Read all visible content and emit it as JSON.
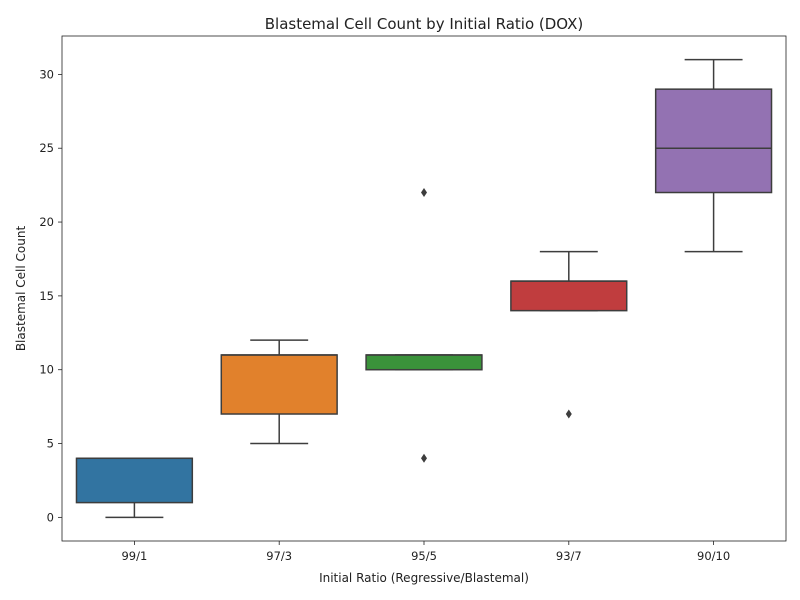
{
  "chart_data": {
    "type": "box",
    "title": "Blastemal Cell Count by Initial Ratio (DOX)",
    "xlabel": "Initial Ratio (Regressive/Blastemal)",
    "ylabel": "Blastemal Cell Count",
    "ylim": [
      -1.6,
      32.6
    ],
    "yticks": [
      0,
      5,
      10,
      15,
      20,
      25,
      30
    ],
    "grid": false,
    "categories": [
      "99/1",
      "97/3",
      "95/5",
      "93/7",
      "90/10"
    ],
    "boxes": [
      {
        "category": "99/1",
        "whisker_low": 0,
        "q1": 1,
        "median": 4,
        "q3": 4,
        "whisker_high": 4,
        "outliers": [],
        "color": "#3274a1"
      },
      {
        "category": "97/3",
        "whisker_low": 5,
        "q1": 7,
        "median": 11,
        "q3": 11,
        "whisker_high": 12,
        "outliers": [],
        "color": "#e1812c"
      },
      {
        "category": "95/5",
        "whisker_low": 10,
        "q1": 10,
        "median": 11,
        "q3": 11,
        "whisker_high": 11,
        "outliers": [
          4,
          22
        ],
        "color": "#3a923a"
      },
      {
        "category": "93/7",
        "whisker_low": 14,
        "q1": 14,
        "median": 16,
        "q3": 16,
        "whisker_high": 18,
        "outliers": [
          7
        ],
        "color": "#c03d3e"
      },
      {
        "category": "90/10",
        "whisker_low": 18,
        "q1": 22,
        "median": 25,
        "q3": 29,
        "whisker_high": 31,
        "outliers": [],
        "color": "#9372b2"
      }
    ]
  }
}
